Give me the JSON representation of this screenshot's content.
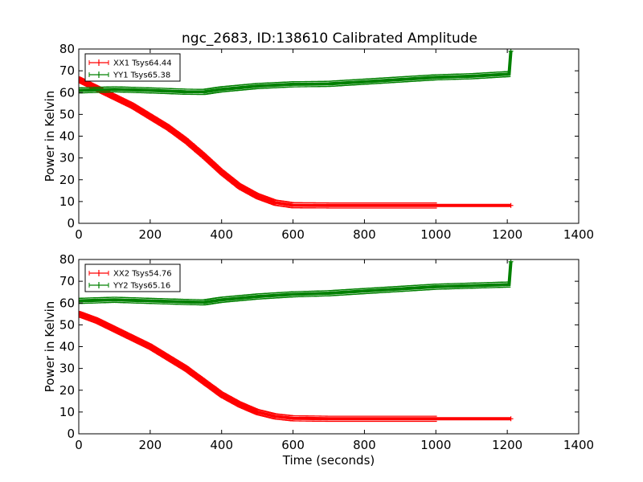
{
  "title": "ngc_2683, ID:138610 Calibrated Amplitude",
  "colors": {
    "xx": "#ff0000",
    "yy": "#008000"
  },
  "chart_data": [
    {
      "type": "line",
      "xlim": [
        0,
        1400
      ],
      "ylim": [
        0,
        80
      ],
      "xticks": [
        "0",
        "200",
        "400",
        "600",
        "800",
        "1000",
        "1200",
        "1400"
      ],
      "yticks": [
        "0",
        "10",
        "20",
        "30",
        "40",
        "50",
        "60",
        "70",
        "80"
      ],
      "xlabel": "",
      "ylabel": "Power in Kelvin",
      "legend": "top-left",
      "series": [
        {
          "name": "XX1 Tsys64.44",
          "color": "#ff0000",
          "points": [
            [
              0,
              66
            ],
            [
              50,
              62
            ],
            [
              100,
              58
            ],
            [
              150,
              54
            ],
            [
              200,
              49
            ],
            [
              250,
              44
            ],
            [
              300,
              38
            ],
            [
              350,
              31
            ],
            [
              400,
              23.5
            ],
            [
              450,
              17
            ],
            [
              500,
              12.5
            ],
            [
              550,
              9.5
            ],
            [
              600,
              8.3
            ],
            [
              700,
              8.2
            ],
            [
              800,
              8.2
            ],
            [
              1000,
              8.2
            ],
            [
              1210,
              8.2
            ]
          ]
        },
        {
          "name": "YY1 Tsys65.38",
          "color": "#008000",
          "points": [
            [
              0,
              61
            ],
            [
              100,
              61.5
            ],
            [
              200,
              61
            ],
            [
              300,
              60.4
            ],
            [
              350,
              60.3
            ],
            [
              400,
              61.5
            ],
            [
              500,
              63
            ],
            [
              600,
              63.8
            ],
            [
              700,
              64
            ],
            [
              800,
              65
            ],
            [
              900,
              66
            ],
            [
              1000,
              67
            ],
            [
              1100,
              67.5
            ],
            [
              1205,
              68.5
            ],
            [
              1210,
              79
            ]
          ]
        }
      ]
    },
    {
      "type": "line",
      "xlim": [
        0,
        1400
      ],
      "ylim": [
        0,
        80
      ],
      "xticks": [
        "0",
        "200",
        "400",
        "600",
        "800",
        "1000",
        "1200",
        "1400"
      ],
      "yticks": [
        "0",
        "10",
        "20",
        "30",
        "40",
        "50",
        "60",
        "70",
        "80"
      ],
      "xlabel": "Time (seconds)",
      "ylabel": "Power in Kelvin",
      "legend": "top-left",
      "series": [
        {
          "name": "XX2 Tsys54.76",
          "color": "#ff0000",
          "points": [
            [
              0,
              55
            ],
            [
              50,
              52
            ],
            [
              100,
              48
            ],
            [
              150,
              44
            ],
            [
              200,
              40
            ],
            [
              250,
              35
            ],
            [
              300,
              30
            ],
            [
              350,
              24
            ],
            [
              400,
              18
            ],
            [
              450,
              13.5
            ],
            [
              500,
              10
            ],
            [
              550,
              8
            ],
            [
              600,
              7.1
            ],
            [
              700,
              6.9
            ],
            [
              800,
              6.9
            ],
            [
              1000,
              6.9
            ],
            [
              1210,
              6.9
            ]
          ]
        },
        {
          "name": "YY2 Tsys65.16",
          "color": "#008000",
          "points": [
            [
              0,
              61
            ],
            [
              100,
              61.5
            ],
            [
              200,
              61
            ],
            [
              300,
              60.5
            ],
            [
              350,
              60.3
            ],
            [
              400,
              61.5
            ],
            [
              500,
              63
            ],
            [
              600,
              64
            ],
            [
              700,
              64.5
            ],
            [
              800,
              65.5
            ],
            [
              900,
              66.5
            ],
            [
              1000,
              67.5
            ],
            [
              1100,
              68
            ],
            [
              1205,
              68.5
            ],
            [
              1210,
              79
            ]
          ]
        }
      ]
    }
  ]
}
